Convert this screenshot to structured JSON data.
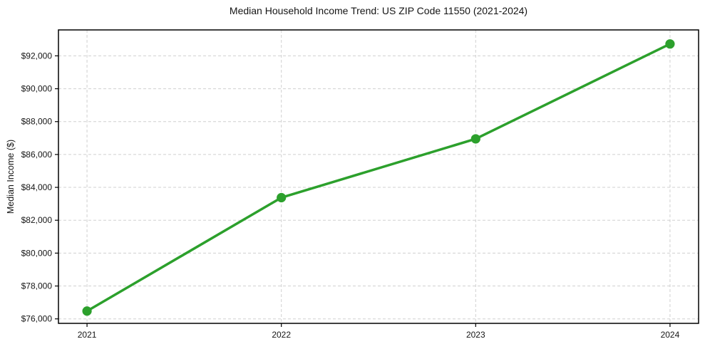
{
  "chart_data": {
    "type": "line",
    "title": "Median Household Income Trend: US ZIP Code 11550 (2021-2024)",
    "xlabel": "",
    "ylabel": "Median Income ($)",
    "x": [
      2021,
      2022,
      2023,
      2024
    ],
    "xtick_labels": [
      "2021",
      "2022",
      "2023",
      "2024"
    ],
    "series": [
      {
        "name": "Median Household Income",
        "values": [
          76475,
          83375,
          86950,
          92725
        ]
      }
    ],
    "yticks": [
      76000,
      78000,
      80000,
      82000,
      84000,
      86000,
      88000,
      90000,
      92000
    ],
    "ytick_labels": [
      "$76,000",
      "$78,000",
      "$80,000",
      "$82,000",
      "$84,000",
      "$86,000",
      "$88,000",
      "$90,000",
      "$92,000"
    ],
    "xlim": [
      2020.853,
      2024.147
    ],
    "ylim": [
      75727,
      93578
    ],
    "grid": true,
    "grid_style": "dashed",
    "legend": "none",
    "line_color": "#2ca02c",
    "marker": "circle",
    "background_color": "#ffffff",
    "grid_color": "#d0d0d0",
    "spine_color": "#000000",
    "tick_label_color": "#151515"
  }
}
